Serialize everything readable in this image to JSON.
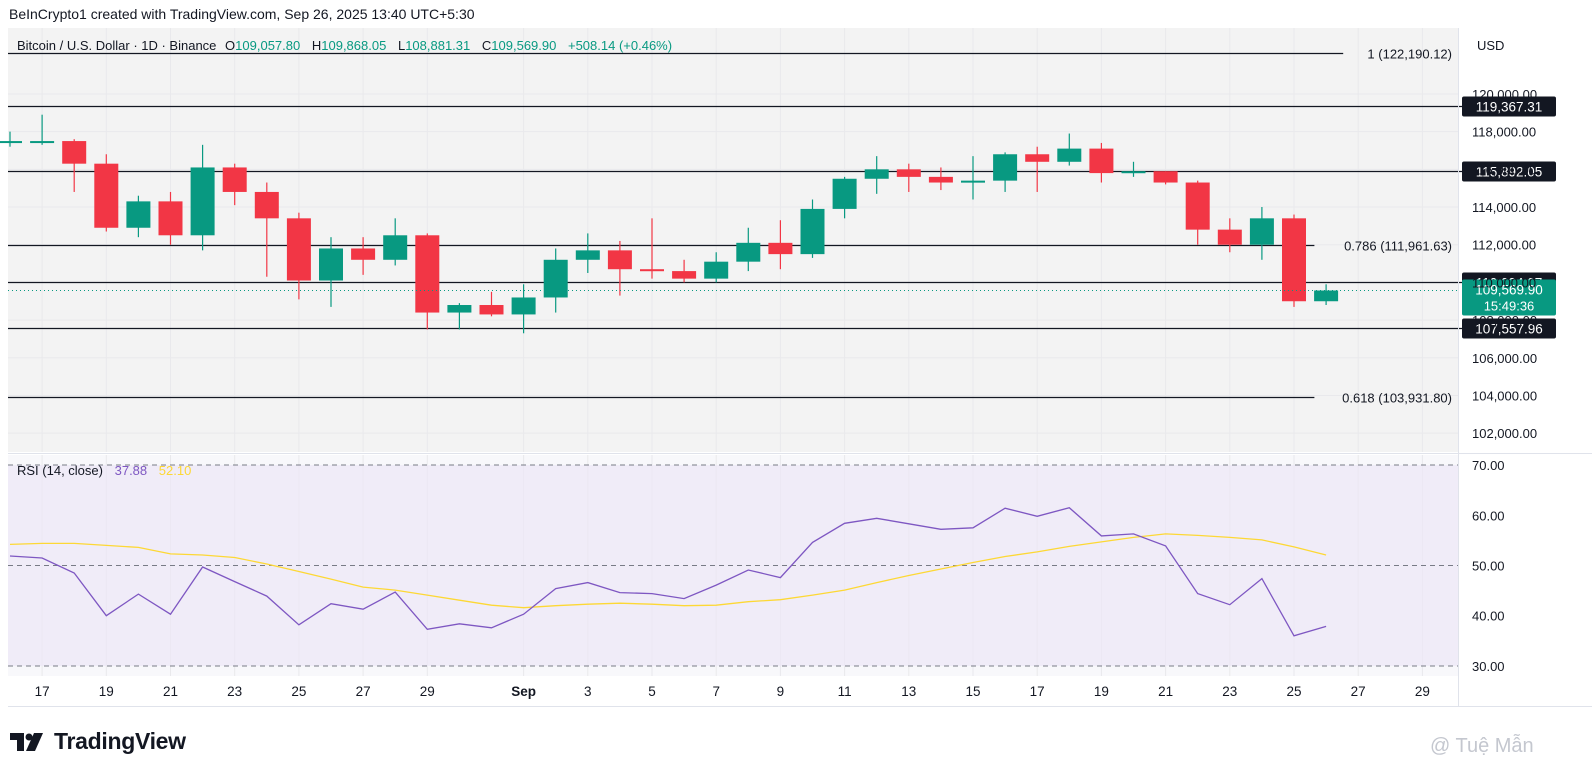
{
  "header": {
    "credit": "BeInCrypto1 created with TradingView.com, Sep 26, 2025 13:40 UTC+5:30"
  },
  "legend": {
    "symbol": "Bitcoin / U.S. Dollar · 1D · Binance",
    "o_label": "O",
    "o_value": "109,057.80",
    "h_label": "H",
    "h_value": "109,868.05",
    "l_label": "L",
    "l_value": "108,881.31",
    "c_label": "C",
    "c_value": "109,569.90",
    "change": "+508.14 (+0.46%)"
  },
  "rsi_legend": {
    "label": "RSI (14, close)",
    "rsi_value": "37.88",
    "ma_value": "52.10"
  },
  "currency": "USD",
  "footer": {
    "brand": "TradingView",
    "watermark": "@ Tuệ Mẫn"
  },
  "colors": {
    "up": "#089981",
    "down": "#f23645",
    "rsi": "#7e57c2",
    "rsi_ma": "#fdd835",
    "rsi_band": "#ede7f6",
    "grid": "#e9e9ec",
    "price_bg": "#f3f3f3"
  },
  "chart_data": [
    {
      "type": "candlestick",
      "title": "Bitcoin / U.S. Dollar · 1D · Binance",
      "ylim": [
        101000,
        123500
      ],
      "y_ticks": [
        "102,000.00",
        "104,000.00",
        "106,000.00",
        "108,000.00",
        "110,000.00",
        "112,000.00",
        "114,000.00",
        "116,000.00",
        "118,000.00",
        "120,000.00"
      ],
      "y_tick_values": [
        102000,
        104000,
        106000,
        108000,
        110000,
        112000,
        114000,
        116000,
        118000,
        120000
      ],
      "x_ticks": [
        {
          "label": "17",
          "i": 1
        },
        {
          "label": "19",
          "i": 3
        },
        {
          "label": "21",
          "i": 5
        },
        {
          "label": "23",
          "i": 7
        },
        {
          "label": "25",
          "i": 9
        },
        {
          "label": "27",
          "i": 11
        },
        {
          "label": "29",
          "i": 13
        },
        {
          "label": "Sep",
          "i": 16,
          "bold": true
        },
        {
          "label": "3",
          "i": 18
        },
        {
          "label": "5",
          "i": 20
        },
        {
          "label": "7",
          "i": 22
        },
        {
          "label": "9",
          "i": 24
        },
        {
          "label": "11",
          "i": 26
        },
        {
          "label": "13",
          "i": 28
        },
        {
          "label": "15",
          "i": 30
        },
        {
          "label": "17",
          "i": 32
        },
        {
          "label": "19",
          "i": 34
        },
        {
          "label": "21",
          "i": 36
        },
        {
          "label": "23",
          "i": 38
        },
        {
          "label": "25",
          "i": 40
        },
        {
          "label": "27",
          "i": 42
        },
        {
          "label": "29",
          "i": 44
        }
      ],
      "candles": [
        {
          "date": "2025-08-16",
          "o": 117400,
          "h": 118000,
          "l": 117200,
          "c": 117500
        },
        {
          "date": "2025-08-17",
          "o": 117500,
          "h": 118900,
          "l": 117300,
          "c": 117500
        },
        {
          "date": "2025-08-18",
          "o": 117500,
          "h": 117600,
          "l": 114800,
          "c": 116300
        },
        {
          "date": "2025-08-19",
          "o": 116300,
          "h": 116800,
          "l": 112700,
          "c": 112900
        },
        {
          "date": "2025-08-20",
          "o": 112900,
          "h": 114600,
          "l": 112400,
          "c": 114300
        },
        {
          "date": "2025-08-21",
          "o": 114300,
          "h": 114800,
          "l": 112000,
          "c": 112500
        },
        {
          "date": "2025-08-22",
          "o": 112500,
          "h": 117300,
          "l": 111700,
          "c": 116100
        },
        {
          "date": "2025-08-23",
          "o": 116100,
          "h": 116300,
          "l": 114100,
          "c": 114800
        },
        {
          "date": "2025-08-24",
          "o": 114800,
          "h": 115300,
          "l": 110300,
          "c": 113400
        },
        {
          "date": "2025-08-25",
          "o": 113400,
          "h": 113700,
          "l": 109100,
          "c": 110100
        },
        {
          "date": "2025-08-26",
          "o": 110100,
          "h": 112400,
          "l": 108700,
          "c": 111800
        },
        {
          "date": "2025-08-27",
          "o": 111800,
          "h": 112400,
          "l": 110400,
          "c": 111200
        },
        {
          "date": "2025-08-28",
          "o": 111200,
          "h": 113400,
          "l": 110900,
          "c": 112500
        },
        {
          "date": "2025-08-29",
          "o": 112500,
          "h": 112600,
          "l": 107500,
          "c": 108400
        },
        {
          "date": "2025-08-30",
          "o": 108400,
          "h": 108900,
          "l": 107500,
          "c": 108800
        },
        {
          "date": "2025-08-31",
          "o": 108800,
          "h": 109500,
          "l": 108200,
          "c": 108300
        },
        {
          "date": "2025-09-01",
          "o": 108300,
          "h": 109900,
          "l": 107300,
          "c": 109200
        },
        {
          "date": "2025-09-02",
          "o": 109200,
          "h": 111800,
          "l": 108400,
          "c": 111200
        },
        {
          "date": "2025-09-03",
          "o": 111200,
          "h": 112600,
          "l": 110500,
          "c": 111700
        },
        {
          "date": "2025-09-04",
          "o": 111700,
          "h": 112200,
          "l": 109300,
          "c": 110700
        },
        {
          "date": "2025-09-05",
          "o": 110700,
          "h": 113400,
          "l": 110200,
          "c": 110600
        },
        {
          "date": "2025-09-06",
          "o": 110600,
          "h": 111200,
          "l": 110000,
          "c": 110200
        },
        {
          "date": "2025-09-07",
          "o": 110200,
          "h": 111600,
          "l": 110000,
          "c": 111100
        },
        {
          "date": "2025-09-08",
          "o": 111100,
          "h": 112900,
          "l": 110600,
          "c": 112100
        },
        {
          "date": "2025-09-09",
          "o": 112100,
          "h": 113300,
          "l": 110700,
          "c": 111500
        },
        {
          "date": "2025-09-10",
          "o": 111500,
          "h": 114400,
          "l": 111300,
          "c": 113900
        },
        {
          "date": "2025-09-11",
          "o": 113900,
          "h": 115600,
          "l": 113400,
          "c": 115500
        },
        {
          "date": "2025-09-12",
          "o": 115500,
          "h": 116700,
          "l": 114700,
          "c": 116000
        },
        {
          "date": "2025-09-13",
          "o": 116000,
          "h": 116300,
          "l": 114800,
          "c": 115600
        },
        {
          "date": "2025-09-14",
          "o": 115600,
          "h": 116100,
          "l": 114900,
          "c": 115300
        },
        {
          "date": "2025-09-15",
          "o": 115300,
          "h": 116700,
          "l": 114400,
          "c": 115400
        },
        {
          "date": "2025-09-16",
          "o": 115400,
          "h": 116900,
          "l": 114800,
          "c": 116800
        },
        {
          "date": "2025-09-17",
          "o": 116800,
          "h": 117200,
          "l": 114800,
          "c": 116400
        },
        {
          "date": "2025-09-18",
          "o": 116400,
          "h": 117900,
          "l": 116200,
          "c": 117100
        },
        {
          "date": "2025-09-19",
          "o": 117100,
          "h": 117400,
          "l": 115300,
          "c": 115800
        },
        {
          "date": "2025-09-20",
          "o": 115800,
          "h": 116400,
          "l": 115600,
          "c": 115900
        },
        {
          "date": "2025-09-21",
          "o": 115900,
          "h": 115900,
          "l": 115200,
          "c": 115300
        },
        {
          "date": "2025-09-22",
          "o": 115300,
          "h": 115400,
          "l": 112000,
          "c": 112800
        },
        {
          "date": "2025-09-23",
          "o": 112800,
          "h": 113400,
          "l": 111600,
          "c": 112000
        },
        {
          "date": "2025-09-24",
          "o": 112000,
          "h": 114000,
          "l": 111200,
          "c": 113400
        },
        {
          "date": "2025-09-25",
          "o": 113400,
          "h": 113600,
          "l": 108700,
          "c": 109000
        },
        {
          "date": "2025-09-26",
          "o": 109000,
          "h": 109900,
          "l": 108800,
          "c": 109570
        }
      ],
      "horizontal_lines": [
        {
          "value": 122190.12,
          "label": "1 (122,190.12)",
          "style": "fib"
        },
        {
          "value": 119367.31,
          "label": "119,367.31",
          "style": "level"
        },
        {
          "value": 115892.05,
          "label": "115,892.05",
          "style": "level"
        },
        {
          "value": 111961.63,
          "label": "0.786 (111,961.63)",
          "style": "fib"
        },
        {
          "value": 110034.07,
          "label": "110,034.07",
          "style": "level"
        },
        {
          "value": 107557.96,
          "label": "107,557.96",
          "style": "level"
        },
        {
          "value": 103931.8,
          "label": "0.618 (103,931.80)",
          "style": "fib"
        }
      ],
      "current_price": {
        "value": 109569.9,
        "label": "109,569.90",
        "countdown": "15:49:36"
      }
    },
    {
      "type": "line",
      "title": "RSI (14, close)",
      "ylim": [
        28,
        72
      ],
      "y_ticks": [
        "30.00",
        "40.00",
        "50.00",
        "60.00",
        "70.00"
      ],
      "y_tick_values": [
        30,
        40,
        50,
        60,
        70
      ],
      "band": [
        30,
        70
      ],
      "midline": 50,
      "series": [
        {
          "name": "RSI",
          "color": "#7e57c2",
          "values": [
            51.9,
            51.5,
            48.5,
            40.0,
            44.3,
            40.3,
            49.7,
            46.8,
            43.9,
            38.2,
            42.4,
            41.3,
            44.7,
            37.3,
            38.4,
            37.6,
            40.3,
            45.4,
            46.6,
            44.6,
            44.4,
            43.4,
            46.1,
            49.1,
            47.6,
            54.6,
            58.4,
            59.4,
            58.3,
            57.2,
            57.5,
            61.4,
            59.8,
            61.5,
            55.9,
            56.3,
            53.9,
            44.4,
            42.2,
            47.4,
            36.0,
            37.88
          ]
        },
        {
          "name": "RSI-based MA",
          "color": "#fdd835",
          "values": [
            54.2,
            54.4,
            54.4,
            54.0,
            53.6,
            52.3,
            52.1,
            51.6,
            50.3,
            48.8,
            47.3,
            45.7,
            45.1,
            44.1,
            43.1,
            42.1,
            41.6,
            42.0,
            42.3,
            42.5,
            42.3,
            42.0,
            42.1,
            42.8,
            43.2,
            44.1,
            45.1,
            46.6,
            48.0,
            49.3,
            50.6,
            51.8,
            52.7,
            53.8,
            54.7,
            55.6,
            56.3,
            56.0,
            55.6,
            55.1,
            53.7,
            52.1
          ]
        }
      ]
    }
  ]
}
